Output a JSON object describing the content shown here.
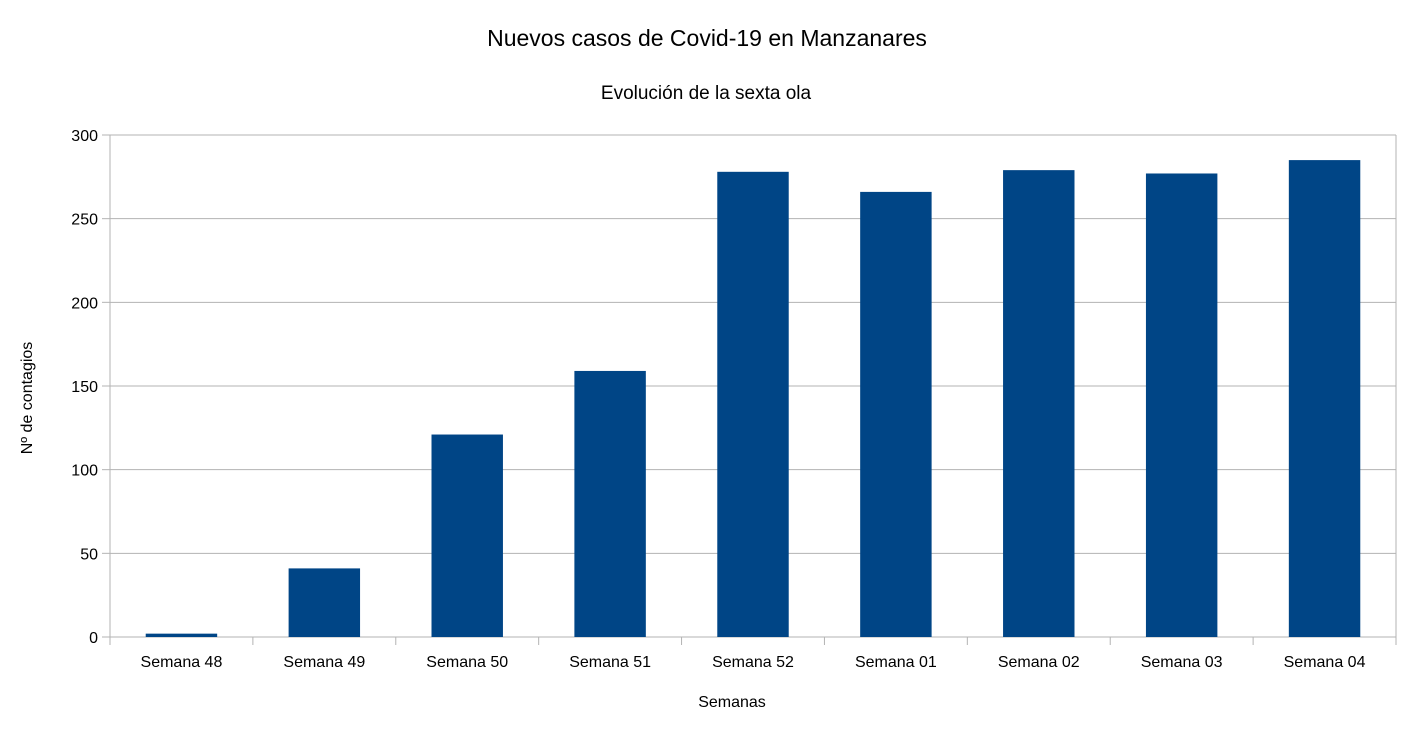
{
  "chart_data": {
    "type": "bar",
    "title": "Nuevos casos de Covid-19 en Manzanares",
    "subtitle": "Evolución de la sexta ola",
    "xlabel": "Semanas",
    "ylabel": "Nº de contagios",
    "categories": [
      "Semana 48",
      "Semana 49",
      "Semana 50",
      "Semana 51",
      "Semana 52",
      "Semana 01",
      "Semana 02",
      "Semana 03",
      "Semana 04"
    ],
    "values": [
      2,
      41,
      121,
      159,
      278,
      266,
      279,
      277,
      285
    ],
    "ylim": [
      0,
      300
    ],
    "yticks": [
      "0",
      "50",
      "100",
      "150",
      "200",
      "250",
      "300"
    ],
    "grid": true,
    "legend": "none",
    "bar_color": "#004586"
  }
}
